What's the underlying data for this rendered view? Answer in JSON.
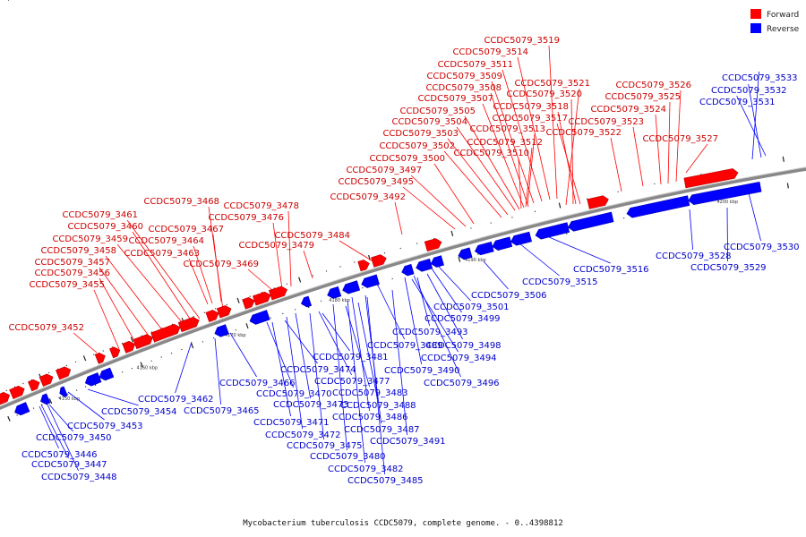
{
  "caption": "Mycobacterium tuberculosis CCDC5079, complete genome. - 0..4398812",
  "legend": [
    {
      "label": "Forward",
      "color": "#ff0000"
    },
    {
      "label": "Reverse",
      "color": "#0000ff"
    }
  ],
  "colors": {
    "forward": "#ff0000",
    "reverse": "#0000ff",
    "backbone": "#888888"
  },
  "ticks": [
    "4150 kbp",
    "4160 kbp",
    "4170 kbp",
    "4180 kbp",
    "4190 kbp",
    "4200 kbp",
    "4210 kbp",
    "4220 kbp",
    "4230 kbp",
    "4240 kbp",
    "4250 kbp"
  ],
  "forward_genes": [
    "CCDC5079_3519",
    "CCDC5079_3514",
    "CCDC5079_3511",
    "CCDC5079_3509",
    "CCDC5079_3508",
    "CCDC5079_3507",
    "CCDC5079_3505",
    "CCDC5079_3504",
    "CCDC5079_3503",
    "CCDC5079_3502",
    "CCDC5079_3500",
    "CCDC5079_3497",
    "CCDC5079_3495",
    "CCDC5079_3492",
    "CCDC5079_3521",
    "CCDC5079_3520",
    "CCDC5079_3518",
    "CCDC5079_3517",
    "CCDC5079_3513",
    "CCDC5079_3512",
    "CCDC5079_3510",
    "CCDC5079_3526",
    "CCDC5079_3525",
    "CCDC5079_3524",
    "CCDC5079_3523",
    "CCDC5079_3522",
    "CCDC5079_3527",
    "CCDC5079_3468",
    "CCDC5079_3461",
    "CCDC5079_3460",
    "CCDC5079_3459",
    "CCDC5079_3458",
    "CCDC5079_3457",
    "CCDC5079_3456",
    "CCDC5079_3455",
    "CCDC5079_3467",
    "CCDC5079_3464",
    "CCDC5079_3463",
    "CCDC5079_3478",
    "CCDC5079_3476",
    "CCDC5079_3479",
    "CCDC5079_3469",
    "CCDC5079_3484",
    "CCDC5079_3452"
  ],
  "reverse_genes": [
    "CCDC5079_3533",
    "CCDC5079_3532",
    "CCDC5079_3531",
    "CCDC5079_3530",
    "CCDC5079_3528",
    "CCDC5079_3529",
    "CCDC5079_3516",
    "CCDC5079_3515",
    "CCDC5079_3506",
    "CCDC5079_3501",
    "CCDC5079_3499",
    "CCDC5079_3493",
    "CCDC5079_3498",
    "CCDC5079_3489",
    "CCDC5079_3494",
    "CCDC5079_3481",
    "CCDC5079_3490",
    "CCDC5079_3474",
    "CCDC5079_3496",
    "CCDC5079_3477",
    "CCDC5079_3466",
    "CCDC5079_3470",
    "CCDC5079_3483",
    "CCDC5079_3462",
    "CCDC5079_3465",
    "CCDC5079_3473",
    "CCDC5079_3488",
    "CCDC5079_3471",
    "CCDC5079_3486",
    "CCDC5079_3454",
    "CCDC5079_3453",
    "CCDC5079_3487",
    "CCDC5079_3472",
    "CCDC5079_3491",
    "CCDC5079_3450",
    "CCDC5079_3475",
    "CCDC5079_3480",
    "CCDC5079_3446",
    "CCDC5079_3447",
    "CCDC5079_3482",
    "CCDC5079_3448",
    "CCDC5079_3485"
  ]
}
